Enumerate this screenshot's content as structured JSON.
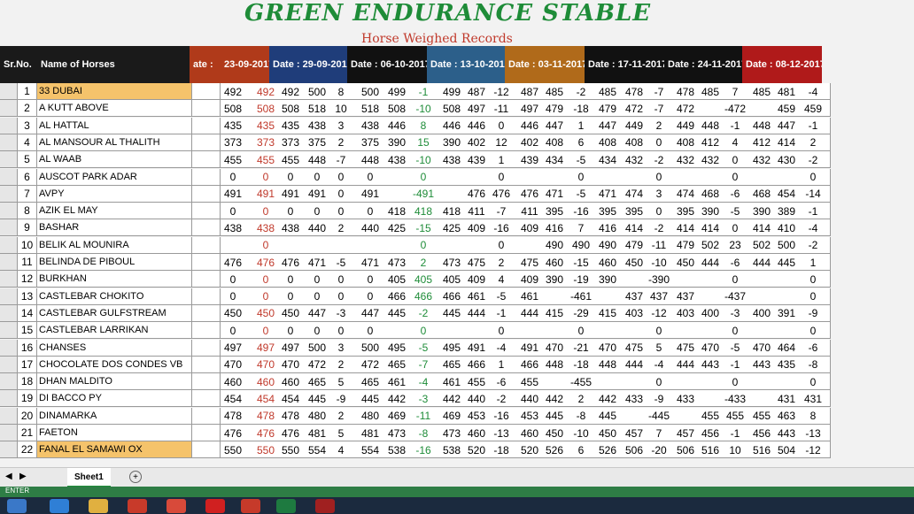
{
  "title": "GREEN ENDURANCE STABLE",
  "subtitle": "Horse Weighed Records",
  "header": {
    "sno": "Sr.No.",
    "name": "Name of Horses",
    "dates": [
      {
        "label": "ate :",
        "color": "#b03a1a"
      },
      {
        "label": "23-09-2017",
        "color": "#b03a1a"
      },
      {
        "label": "Date : 29-09-2017",
        "color": "#1f3d7a"
      },
      {
        "label": "Date : 06-10-2017",
        "color": "#111111"
      },
      {
        "label": "Date : 13-10-2017",
        "color": "#2c5f8a"
      },
      {
        "label": "Date : 03-11-2017",
        "color": "#b06a1a"
      },
      {
        "label": "Date : 17-11-2017",
        "color": "#111111"
      },
      {
        "label": "Date : 24-11-2017",
        "color": "#111111"
      },
      {
        "label": "Date : 08-12-2017",
        "color": "#b01a1a"
      }
    ]
  },
  "rows": [
    {
      "no": "1",
      "name": "33 DUBAI",
      "hl": true,
      "vals": [
        "492",
        "492",
        "492",
        "500",
        "8",
        "500",
        "499",
        "-1",
        "499",
        "487",
        "-12",
        "487",
        "485",
        "-2",
        "485",
        "478",
        "-7",
        "478",
        "485",
        "7",
        "485",
        "481",
        "-4"
      ]
    },
    {
      "no": "2",
      "name": "A KUTT ABOVE",
      "vals": [
        "508",
        "508",
        "508",
        "518",
        "10",
        "518",
        "508",
        "-10",
        "508",
        "497",
        "-11",
        "497",
        "479",
        "-18",
        "479",
        "472",
        "-7",
        "472",
        "",
        "-472",
        "",
        "459",
        "459"
      ]
    },
    {
      "no": "3",
      "name": "AL HATTAL",
      "vals": [
        "435",
        "435",
        "435",
        "438",
        "3",
        "438",
        "446",
        "8",
        "446",
        "446",
        "0",
        "446",
        "447",
        "1",
        "447",
        "449",
        "2",
        "449",
        "448",
        "-1",
        "448",
        "447",
        "-1"
      ]
    },
    {
      "no": "4",
      "name": "AL MANSOUR AL THALITH",
      "vals": [
        "373",
        "373",
        "373",
        "375",
        "2",
        "375",
        "390",
        "15",
        "390",
        "402",
        "12",
        "402",
        "408",
        "6",
        "408",
        "408",
        "0",
        "408",
        "412",
        "4",
        "412",
        "414",
        "2"
      ]
    },
    {
      "no": "5",
      "name": "AL WAAB",
      "vals": [
        "455",
        "455",
        "455",
        "448",
        "-7",
        "448",
        "438",
        "-10",
        "438",
        "439",
        "1",
        "439",
        "434",
        "-5",
        "434",
        "432",
        "-2",
        "432",
        "432",
        "0",
        "432",
        "430",
        "-2"
      ]
    },
    {
      "no": "6",
      "name": "AUSCOT PARK ADAR",
      "vals": [
        "0",
        "0",
        "0",
        "0",
        "0",
        "0",
        "",
        "0",
        "",
        "",
        "0",
        "",
        "",
        "0",
        "",
        "",
        "0",
        "",
        "",
        "0",
        "",
        "",
        "0"
      ]
    },
    {
      "no": "7",
      "name": "AVPY",
      "vals": [
        "491",
        "491",
        "491",
        "491",
        "0",
        "491",
        "",
        "-491",
        "",
        "476",
        "476",
        "476",
        "471",
        "-5",
        "471",
        "474",
        "3",
        "474",
        "468",
        "-6",
        "468",
        "454",
        "-14"
      ]
    },
    {
      "no": "8",
      "name": "AZIK EL MAY",
      "vals": [
        "0",
        "0",
        "0",
        "0",
        "0",
        "0",
        "418",
        "418",
        "418",
        "411",
        "-7",
        "411",
        "395",
        "-16",
        "395",
        "395",
        "0",
        "395",
        "390",
        "-5",
        "390",
        "389",
        "-1"
      ]
    },
    {
      "no": "9",
      "name": "BASHAR",
      "vals": [
        "438",
        "438",
        "438",
        "440",
        "2",
        "440",
        "425",
        "-15",
        "425",
        "409",
        "-16",
        "409",
        "416",
        "7",
        "416",
        "414",
        "-2",
        "414",
        "414",
        "0",
        "414",
        "410",
        "-4"
      ]
    },
    {
      "no": "10",
      "name": "BELIK AL MOUNIRA",
      "vals": [
        "",
        "0",
        "",
        "",
        "",
        "",
        "",
        "0",
        "",
        "",
        "0",
        "",
        "490",
        "490",
        "490",
        "479",
        "-11",
        "479",
        "502",
        "23",
        "502",
        "500",
        "-2"
      ]
    },
    {
      "no": "11",
      "name": "BELINDA DE PIBOUL",
      "vals": [
        "476",
        "476",
        "476",
        "471",
        "-5",
        "471",
        "473",
        "2",
        "473",
        "475",
        "2",
        "475",
        "460",
        "-15",
        "460",
        "450",
        "-10",
        "450",
        "444",
        "-6",
        "444",
        "445",
        "1"
      ]
    },
    {
      "no": "12",
      "name": "BURKHAN",
      "vals": [
        "0",
        "0",
        "0",
        "0",
        "0",
        "0",
        "405",
        "405",
        "405",
        "409",
        "4",
        "409",
        "390",
        "-19",
        "390",
        "",
        "-390",
        "",
        "",
        "0",
        "",
        "",
        "0"
      ]
    },
    {
      "no": "13",
      "name": "CASTLEBAR CHOKITO",
      "vals": [
        "0",
        "0",
        "0",
        "0",
        "0",
        "0",
        "466",
        "466",
        "466",
        "461",
        "-5",
        "461",
        "",
        "-461",
        "",
        "437",
        "437",
        "437",
        "",
        "-437",
        "",
        "",
        "0"
      ]
    },
    {
      "no": "14",
      "name": "CASTLEBAR GULFSTREAM",
      "vals": [
        "450",
        "450",
        "450",
        "447",
        "-3",
        "447",
        "445",
        "-2",
        "445",
        "444",
        "-1",
        "444",
        "415",
        "-29",
        "415",
        "403",
        "-12",
        "403",
        "400",
        "-3",
        "400",
        "391",
        "-9"
      ]
    },
    {
      "no": "15",
      "name": "CASTLEBAR LARRIKAN",
      "vals": [
        "0",
        "0",
        "0",
        "0",
        "0",
        "0",
        "",
        "0",
        "",
        "",
        "0",
        "",
        "",
        "0",
        "",
        "",
        "0",
        "",
        "",
        "0",
        "",
        "",
        "0"
      ]
    },
    {
      "no": "16",
      "name": "CHANSES",
      "vals": [
        "497",
        "497",
        "497",
        "500",
        "3",
        "500",
        "495",
        "-5",
        "495",
        "491",
        "-4",
        "491",
        "470",
        "-21",
        "470",
        "475",
        "5",
        "475",
        "470",
        "-5",
        "470",
        "464",
        "-6"
      ]
    },
    {
      "no": "17",
      "name": "CHOCOLATE DOS CONDES VB",
      "vals": [
        "470",
        "470",
        "470",
        "472",
        "2",
        "472",
        "465",
        "-7",
        "465",
        "466",
        "1",
        "466",
        "448",
        "-18",
        "448",
        "444",
        "-4",
        "444",
        "443",
        "-1",
        "443",
        "435",
        "-8"
      ]
    },
    {
      "no": "18",
      "name": "DHAN MALDITO",
      "vals": [
        "460",
        "460",
        "460",
        "465",
        "5",
        "465",
        "461",
        "-4",
        "461",
        "455",
        "-6",
        "455",
        "",
        "-455",
        "",
        "",
        "0",
        "",
        "",
        "0",
        "",
        "",
        "0"
      ]
    },
    {
      "no": "19",
      "name": "DI BACCO PY",
      "vals": [
        "454",
        "454",
        "454",
        "445",
        "-9",
        "445",
        "442",
        "-3",
        "442",
        "440",
        "-2",
        "440",
        "442",
        "2",
        "442",
        "433",
        "-9",
        "433",
        "",
        "-433",
        "",
        "431",
        "431"
      ]
    },
    {
      "no": "20",
      "name": "DINAMARKA",
      "vals": [
        "478",
        "478",
        "478",
        "480",
        "2",
        "480",
        "469",
        "-11",
        "469",
        "453",
        "-16",
        "453",
        "445",
        "-8",
        "445",
        "",
        "-445",
        "",
        "455",
        "455",
        "455",
        "463",
        "8"
      ]
    },
    {
      "no": "21",
      "name": "FAETON",
      "vals": [
        "476",
        "476",
        "476",
        "481",
        "5",
        "481",
        "473",
        "-8",
        "473",
        "460",
        "-13",
        "460",
        "450",
        "-10",
        "450",
        "457",
        "7",
        "457",
        "456",
        "-1",
        "456",
        "443",
        "-13"
      ]
    },
    {
      "no": "22",
      "name": "FANAL EL SAMAWI OX",
      "hl": true,
      "vals": [
        "550",
        "550",
        "550",
        "554",
        "4",
        "554",
        "538",
        "-16",
        "538",
        "520",
        "-18",
        "520",
        "526",
        "6",
        "526",
        "506",
        "-20",
        "506",
        "516",
        "10",
        "516",
        "504",
        "-12"
      ]
    }
  ],
  "sheet": {
    "tab": "Sheet1",
    "add": "+",
    "status": "ENTER"
  },
  "colors": {
    "highlight": "#f5c36b",
    "title_green": "#1e8c38",
    "subtitle_red": "#c0392b"
  }
}
